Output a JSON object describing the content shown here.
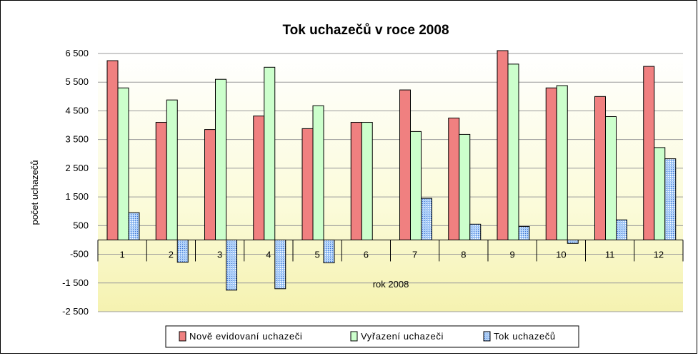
{
  "chart_data": {
    "type": "bar",
    "title": "Tok uchazečů v roce 2008",
    "xlabel": "rok 2008",
    "ylabel": "počet uchazečů",
    "categories": [
      "1",
      "2",
      "3",
      "4",
      "5",
      "6",
      "7",
      "8",
      "9",
      "10",
      "11",
      "12"
    ],
    "yticks": [
      "6 500",
      "5 500",
      "4 500",
      "3 500",
      "2 500",
      "1 500",
      "500",
      "-500",
      "-1 500",
      "-2 500"
    ],
    "ylim": [
      -2500,
      6500
    ],
    "series": [
      {
        "name": "Nově evidovaní uchazeči",
        "color": "#f08080",
        "values": [
          6250,
          4100,
          3850,
          4320,
          3880,
          4100,
          5230,
          4250,
          6600,
          5300,
          5000,
          6050
        ]
      },
      {
        "name": "Vyřazení uchazeči",
        "color": "#ccffcc",
        "values": [
          5300,
          4880,
          5600,
          6020,
          4680,
          4100,
          3780,
          3680,
          6130,
          5380,
          4300,
          3220
        ]
      },
      {
        "name": "Tok uchazečů",
        "color": "#99ccff",
        "values": [
          950,
          -780,
          -1750,
          -1700,
          -800,
          0,
          1450,
          550,
          470,
          -120,
          700,
          2830
        ]
      }
    ],
    "grid": true,
    "legend_position": "bottom",
    "plot_background": "gradient pale yellow"
  }
}
